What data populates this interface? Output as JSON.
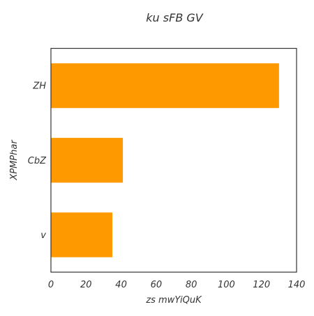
{
  "chart_data": {
    "type": "bar",
    "orientation": "horizontal",
    "title": "ku sFB  GV",
    "xlabel": "zs mwYiQuK",
    "ylabel": "XPMPhar",
    "categories": [
      "ZH",
      "CbZ",
      "v"
    ],
    "values": [
      130,
      41,
      35
    ],
    "xlim": [
      0,
      140
    ],
    "xticks": [
      0,
      20,
      40,
      60,
      80,
      100,
      120,
      140
    ],
    "grid": false,
    "bar_color": "#ff9900"
  }
}
